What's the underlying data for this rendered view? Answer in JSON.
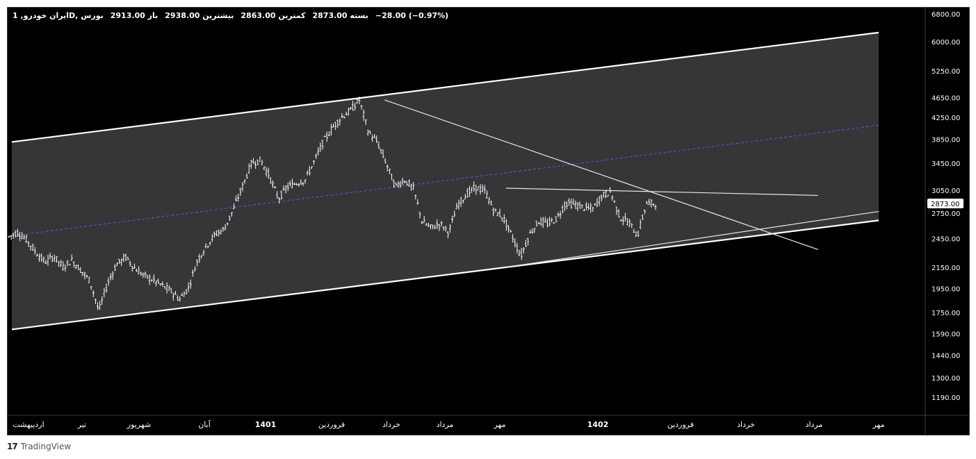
{
  "legend": {
    "symbol": "ایران خودرو, 1D, بورس",
    "open": "باز 2913.00",
    "high": "بیشترین 2938.00",
    "low": "کمترین 2863.00",
    "close": "بسته 2873.00",
    "change": "−28.00 (−0.97%)"
  },
  "footer": {
    "brand": "TradingView",
    "logo": "17"
  },
  "chart_data": {
    "type": "candlestick",
    "y_scale": "log",
    "ylim": [
      1100,
      7000
    ],
    "y_ticks": [
      "6800.00",
      "6000.00",
      "5250.00",
      "4650.00",
      "4250.00",
      "3850.00",
      "3450.00",
      "3050.00",
      "2750.00",
      "2450.00",
      "2150.00",
      "1950.00",
      "1750.00",
      "1590.00",
      "1440.00",
      "1300.00",
      "1190.00"
    ],
    "x_ticks": [
      "اردیبهشت",
      "تیر",
      "شهریور",
      "آبان",
      "1401",
      "فروردین",
      "خرداد",
      "مرداد",
      "مهر",
      "1402",
      "فروردین",
      "خرداد",
      "مرداد",
      "مهر"
    ],
    "x_ticks_bold": [
      false,
      false,
      false,
      false,
      true,
      false,
      false,
      false,
      false,
      true,
      false,
      false,
      false,
      false
    ],
    "last_price": "2873.00",
    "price_path": [
      2470,
      2520,
      2430,
      2300,
      2200,
      2260,
      2150,
      2220,
      2120,
      2020,
      1760,
      2000,
      2180,
      2250,
      2140,
      2070,
      2030,
      1980,
      1930,
      1860,
      1960,
      2220,
      2370,
      2500,
      2560,
      2800,
      3100,
      3450,
      3500,
      3250,
      2930,
      3100,
      3150,
      3200,
      3480,
      3800,
      4050,
      4250,
      4380,
      4600,
      3980,
      3800,
      3450,
      3100,
      3200,
      3080,
      2650,
      2570,
      2620,
      2520,
      2860,
      3000,
      3090,
      3040,
      2780,
      2700,
      2480,
      2260,
      2500,
      2650,
      2620,
      2680,
      2880,
      2860,
      2820,
      2800,
      2970,
      3030,
      2700,
      2640,
      2480,
      2870,
      2873
    ],
    "channel": {
      "upper": {
        "from": [
          "start",
          3800
        ],
        "to": [
          "end",
          6250
        ]
      },
      "lower": {
        "from": [
          "start",
          1620
        ],
        "to": [
          "end",
          2660
        ]
      },
      "median_dashed": {
        "from": [
          "start",
          2480
        ],
        "to": [
          "end",
          4100
        ]
      }
    },
    "trendlines": [
      {
        "name": "downtrend",
        "from": [
          0.43,
          4600
        ],
        "to": [
          0.93,
          2330
        ]
      },
      {
        "name": "resistance",
        "from": [
          0.57,
          3080
        ],
        "to": [
          0.93,
          2980
        ]
      },
      {
        "name": "support",
        "from": [
          0.57,
          2150
        ],
        "to": [
          1.0,
          2770
        ]
      }
    ],
    "colors": {
      "background": "#000000",
      "channel_fill": "#363636",
      "channel_lines": "#ffffff",
      "median": "#3a5fcd",
      "bars": "#ffffff",
      "axis_text": "#ffffff",
      "price_label_bg": "#ffffff",
      "price_label_text": "#000000"
    }
  }
}
